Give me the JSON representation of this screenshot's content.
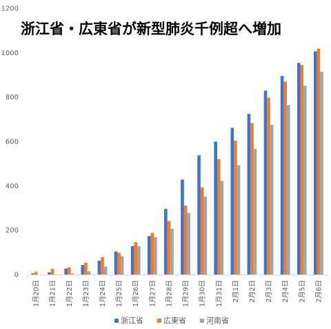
{
  "chart_data": {
    "type": "bar",
    "title": "浙江省・広東省が新型肺炎千例超へ増加",
    "categories": [
      "1月20日",
      "1月21日",
      "1月22日",
      "1月23日",
      "1月24日",
      "1月25日",
      "1月26日",
      "1月27日",
      "1月28日",
      "1月29日",
      "1月30日",
      "1月31日",
      "2月1日",
      "2月2日",
      "2月3日",
      "2月4日",
      "2月5日",
      "2月6日"
    ],
    "series": [
      {
        "name": "浙江省",
        "color": "#4472c4",
        "values": [
          5,
          10,
          27,
          43,
          62,
          104,
          128,
          173,
          296,
          428,
          537,
          599,
          661,
          724,
          829,
          895,
          954,
          1006
        ]
      },
      {
        "name": "広東省",
        "color": "#ed7d31",
        "values": [
          12,
          26,
          32,
          53,
          78,
          98,
          146,
          188,
          241,
          311,
          393,
          520,
          604,
          683,
          797,
          870,
          944,
          1018
        ]
      },
      {
        "name": "河南省",
        "color": "#a5a5a5",
        "values": [
          0,
          1,
          5,
          15,
          36,
          83,
          128,
          168,
          206,
          278,
          352,
          422,
          493,
          566,
          675,
          764,
          851,
          914
        ]
      }
    ],
    "ylim": [
      0,
      1200
    ],
    "yticks": [
      0,
      200,
      400,
      600,
      800,
      1000,
      1200
    ],
    "xlabel": "",
    "ylabel": "",
    "grid": false,
    "legend": "bottom"
  }
}
